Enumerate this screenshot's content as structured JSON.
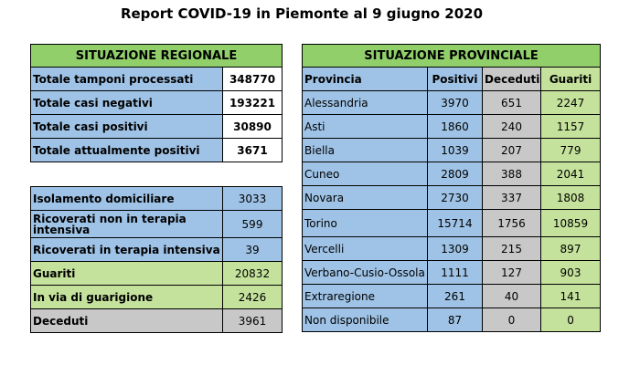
{
  "title": "Report COVID-19 in Piemonte al 9 giugno 2020",
  "regional": {
    "header": "SITUAZIONE REGIONALE",
    "totals": [
      {
        "label": "Totale tamponi processati",
        "value": "348770"
      },
      {
        "label": "Totale casi negativi",
        "value": "193221"
      },
      {
        "label": "Totale casi positivi",
        "value": "30890"
      },
      {
        "label": "Totale attualmente positivi",
        "value": "3671"
      }
    ],
    "details": [
      {
        "label": "Isolamento domiciliare",
        "value": "3033"
      },
      {
        "label": "Ricoverati non in terapia intensiva",
        "value": "599"
      },
      {
        "label": "Ricoverati in terapia intensiva",
        "value": "39"
      },
      {
        "label": "Guariti",
        "value": "20832"
      },
      {
        "label": "In via di guarigione",
        "value": "2426"
      },
      {
        "label": "Deceduti",
        "value": "3961"
      }
    ]
  },
  "provincial": {
    "header": "SITUAZIONE PROVINCIALE",
    "columns": [
      "Provincia",
      "Positivi",
      "Deceduti",
      "Guariti"
    ],
    "rows": [
      {
        "provincia": "Alessandria",
        "positivi": "3970",
        "deceduti": "651",
        "guariti": "2247"
      },
      {
        "provincia": "Asti",
        "positivi": "1860",
        "deceduti": "240",
        "guariti": "1157"
      },
      {
        "provincia": "Biella",
        "positivi": "1039",
        "deceduti": "207",
        "guariti": "779"
      },
      {
        "provincia": "Cuneo",
        "positivi": "2809",
        "deceduti": "388",
        "guariti": "2041"
      },
      {
        "provincia": "Novara",
        "positivi": "2730",
        "deceduti": "337",
        "guariti": "1808"
      },
      {
        "provincia": "Torino",
        "positivi": "15714",
        "deceduti": "1756",
        "guariti": "10859"
      },
      {
        "provincia": "Vercelli",
        "positivi": "1309",
        "deceduti": "215",
        "guariti": "897"
      },
      {
        "provincia": "Verbano-Cusio-Ossola",
        "positivi": "1111",
        "deceduti": "127",
        "guariti": "903"
      },
      {
        "provincia": "Extraregione",
        "positivi": "261",
        "deceduti": "40",
        "guariti": "141"
      },
      {
        "provincia": "Non disponibile",
        "positivi": "87",
        "deceduti": "0",
        "guariti": "0"
      }
    ]
  },
  "colors": {
    "header_green": "#90cf6a",
    "blue": "#9fc3e6",
    "light_green": "#c5e29c",
    "gray": "#c8c8c8"
  }
}
